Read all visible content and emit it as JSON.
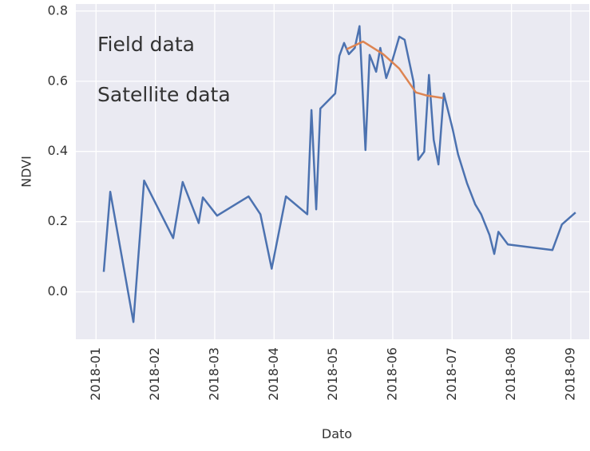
{
  "chart_data": {
    "type": "line",
    "xlabel": "Dato",
    "ylabel": "NDVI",
    "xlim": [
      0.66,
      9.31
    ],
    "xticks": [
      {
        "value": 1,
        "label": "2018-01"
      },
      {
        "value": 2,
        "label": "2018-02"
      },
      {
        "value": 3,
        "label": "2018-03"
      },
      {
        "value": 4,
        "label": "2018-04"
      },
      {
        "value": 5,
        "label": "2018-05"
      },
      {
        "value": 6,
        "label": "2018-06"
      },
      {
        "value": 7,
        "label": "2018-07"
      },
      {
        "value": 8,
        "label": "2018-08"
      },
      {
        "value": 9,
        "label": "2018-09"
      }
    ],
    "ylim": [
      -0.135,
      0.82
    ],
    "yticks": [
      {
        "value": 0,
        "label": "0.0"
      },
      0.2,
      0.4,
      0.6,
      0.8
    ],
    "grid": true,
    "series": [
      {
        "name": "Field data",
        "color": "#dd8452",
        "x": [
          5.22,
          5.5,
          5.84,
          6.11,
          6.39,
          6.58,
          6.85
        ],
        "values": [
          0.691,
          0.713,
          0.677,
          0.636,
          0.568,
          0.559,
          0.552
        ]
      },
      {
        "name": "Satellite data",
        "color": "#4c72b0",
        "x": [
          1.13,
          1.24,
          1.63,
          1.81,
          2.3,
          2.46,
          2.73,
          2.8,
          3.04,
          3.57,
          3.77,
          3.96,
          4.2,
          4.56,
          4.63,
          4.71,
          4.78,
          5.03,
          5.1,
          5.18,
          5.26,
          5.36,
          5.44,
          5.54,
          5.61,
          5.72,
          5.79,
          5.89,
          6.0,
          6.11,
          6.2,
          6.35,
          6.43,
          6.53,
          6.61,
          6.69,
          6.77,
          6.86,
          7.01,
          7.1,
          7.25,
          7.39,
          7.49,
          7.63,
          7.71,
          7.78,
          7.94,
          8.69,
          8.85,
          9.08
        ],
        "values": [
          0.057,
          0.285,
          -0.086,
          0.317,
          0.153,
          0.313,
          0.196,
          0.269,
          0.217,
          0.272,
          0.221,
          0.066,
          0.272,
          0.221,
          0.518,
          0.235,
          0.522,
          0.565,
          0.672,
          0.709,
          0.677,
          0.695,
          0.757,
          0.404,
          0.675,
          0.627,
          0.695,
          0.609,
          0.663,
          0.727,
          0.718,
          0.598,
          0.376,
          0.399,
          0.618,
          0.433,
          0.363,
          0.565,
          0.463,
          0.392,
          0.31,
          0.249,
          0.221,
          0.162,
          0.108,
          0.171,
          0.135,
          0.119,
          0.192,
          0.226
        ]
      }
    ]
  }
}
